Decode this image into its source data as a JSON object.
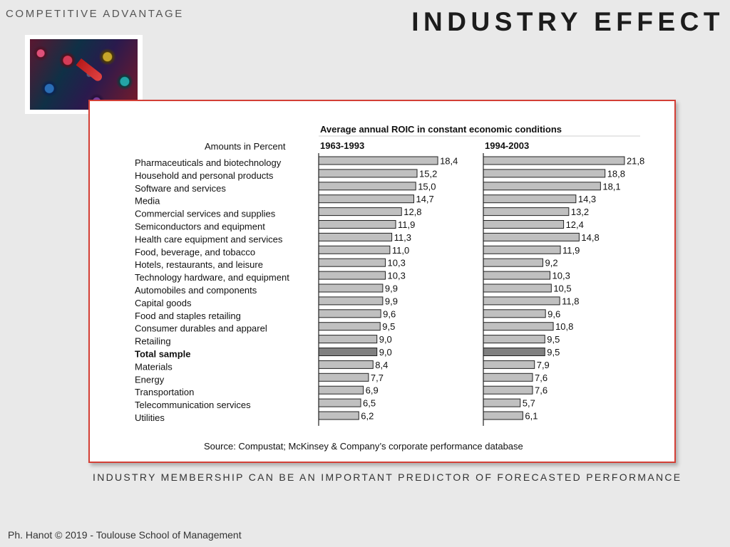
{
  "header": {
    "kicker": "COMPETITIVE ADVANTAGE",
    "title": "INDUSTRY EFFECT"
  },
  "footer": {
    "caption": "INDUSTRY MEMBERSHIP  CAN BE AN IMPORTANT PREDICTOR OF FORECASTED PERFORMANCE",
    "credits": "Ph. Hanot © 2019  -  Toulouse School of Management"
  },
  "colors": {
    "panel_border": "#d33f36",
    "bar_fill": "#c0c0c0",
    "total_bar_fill": "#808080"
  },
  "chart_data": {
    "type": "bar",
    "orientation": "horizontal",
    "title": "Average annual ROIC in constant economic conditions",
    "unit_label": "Amounts in Percent",
    "source": "Source: Compustat; McKinsey & Company’s corporate performance database",
    "categories": [
      "Pharmaceuticals and biotechnology",
      "Household and personal products",
      "Software and services",
      "Media",
      "Commercial services and supplies",
      "Semiconductors and equipment",
      "Health care equipment and services",
      "Food, beverage, and tobacco",
      "Hotels, restaurants, and leisure",
      "Technology hardware, and equipment",
      "Automobiles and components",
      "Capital goods",
      "Food and staples retailing",
      "Consumer durables and apparel",
      "Retailing",
      "Total sample",
      "Materials",
      "Energy",
      "Transportation",
      "Telecommunication services",
      "Utilities"
    ],
    "highlight_category": "Total sample",
    "series": [
      {
        "name": "1963-1993",
        "values": [
          18.4,
          15.2,
          15.0,
          14.7,
          12.8,
          11.9,
          11.3,
          11.0,
          10.3,
          10.3,
          9.9,
          9.9,
          9.6,
          9.5,
          9.0,
          9.0,
          8.4,
          7.7,
          6.9,
          6.5,
          6.2
        ],
        "labels": [
          "18,4",
          "15,2",
          "15,0",
          "14,7",
          "12,8",
          "11,9",
          "11,3",
          "11,0",
          "10,3",
          "10,3",
          "9,9",
          "9,9",
          "9,6",
          "9,5",
          "9,0",
          "9,0",
          "8,4",
          "7,7",
          "6,9",
          "6,5",
          "6,2"
        ]
      },
      {
        "name": "1994-2003",
        "values": [
          21.8,
          18.8,
          18.1,
          14.3,
          13.2,
          12.4,
          14.8,
          11.9,
          9.2,
          10.3,
          10.5,
          11.8,
          9.6,
          10.8,
          9.5,
          9.5,
          7.9,
          7.6,
          7.6,
          5.7,
          6.1
        ],
        "labels": [
          "21,8",
          "18,8",
          "18,1",
          "14,3",
          "13,2",
          "12,4",
          "14,8",
          "11,9",
          "9,2",
          "10,3",
          "10,5",
          "11,8",
          "9,6",
          "10,8",
          "9,5",
          "9,5",
          "7,9",
          "7,6",
          "7,6",
          "5,7",
          "6,1"
        ]
      }
    ]
  }
}
